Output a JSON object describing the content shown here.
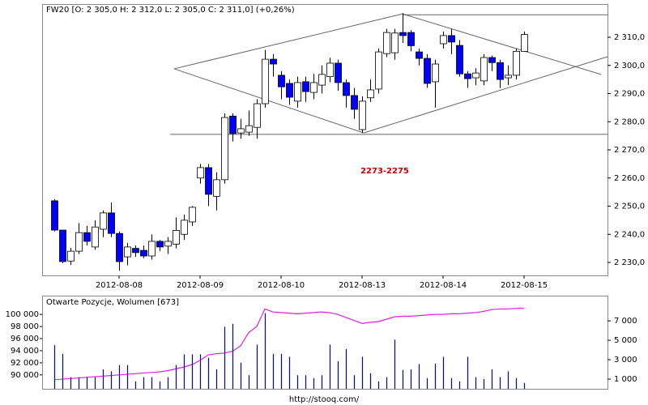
{
  "chart_data": [
    {
      "type": "candlestick",
      "title": "FW20 [O: 2 305,0  H: 2 312,0  L: 2 305,0  C: 2 311,0] (+0,26%)",
      "categories": [
        null,
        null,
        null,
        null,
        null,
        null,
        null,
        null,
        "2012-08-08",
        null,
        null,
        null,
        null,
        null,
        null,
        null,
        null,
        null,
        "2012-08-09",
        null,
        null,
        null,
        null,
        null,
        null,
        null,
        null,
        null,
        "2012-08-10",
        null,
        null,
        null,
        null,
        null,
        null,
        null,
        null,
        null,
        "2012-08-13",
        null,
        null,
        null,
        null,
        null,
        null,
        null,
        null,
        null,
        "2012-08-14",
        null,
        null,
        null,
        null,
        null,
        null,
        null,
        null,
        null,
        "2012-08-15"
      ],
      "open": [
        2251.9,
        2241.5,
        2230.5,
        2234,
        2240.6,
        2235.5,
        2241.8,
        2247.6,
        2240.3,
        2232,
        2235,
        2234.3,
        2232.3,
        2237.5,
        2235.8,
        2236.5,
        2240,
        2244.4,
        2260,
        2263.7,
        2253.5,
        2259.4,
        2282,
        2276,
        2276.3,
        2278,
        2286.4,
        2302.2,
        2296.5,
        2293.6,
        2287.3,
        2294.2,
        2290.4,
        2293,
        2296,
        2300.8,
        2293.9,
        2289.3,
        2277.2,
        2288.5,
        2291.6,
        2304.2,
        2304.5,
        2311.7,
        2311.7,
        2304.8,
        2302.5,
        2294.2,
        2307.7,
        2310.6,
        2307.1,
        2297,
        2295.6,
        2294.5,
        2302.8,
        2301,
        2295.6,
        2296.5,
        2305
      ],
      "high": [
        2252.5,
        2241.5,
        2235.2,
        2244,
        2243,
        2245,
        2248.5,
        2251.3,
        2241,
        2237,
        2236,
        2236,
        2240,
        2238,
        2239,
        2246,
        2247,
        2250,
        2265,
        2265,
        2262,
        2283,
        2283,
        2281,
        2284,
        2288,
        2305.5,
        2304,
        2298,
        2295,
        2296,
        2296,
        2297,
        2300,
        2302.7,
        2302,
        2295,
        2292,
        2289,
        2295,
        2306,
        2313,
        2313,
        2318.6,
        2312.5,
        2306,
        2304,
        2302,
        2312,
        2313,
        2309,
        2298,
        2299,
        2304,
        2303.5,
        2302,
        2300,
        2306,
        2312
      ],
      "low": [
        2241,
        2229.7,
        2229.1,
        2233,
        2236,
        2234.5,
        2239,
        2239,
        2227.1,
        2229,
        2232,
        2231.5,
        2231,
        2234,
        2233,
        2235,
        2238,
        2243,
        2258,
        2250,
        2248.5,
        2258,
        2273,
        2274,
        2275,
        2274,
        2285,
        2296,
        2288,
        2286,
        2285,
        2287,
        2288,
        2290,
        2294,
        2291,
        2285,
        2281,
        2276,
        2287,
        2290,
        2303,
        2302,
        2308,
        2305,
        2300,
        2292,
        2285,
        2306,
        2304,
        2296,
        2292,
        2293,
        2293,
        2298,
        2292,
        2293,
        2295,
        2305
      ],
      "close": [
        2241.5,
        2230.3,
        2234,
        2240.6,
        2237.5,
        2242.6,
        2247.6,
        2240.3,
        2230.3,
        2235.5,
        2233.5,
        2232.3,
        2237.5,
        2235.5,
        2237.5,
        2241.4,
        2245,
        2249.6,
        2263.7,
        2254.2,
        2259.4,
        2281.5,
        2275.8,
        2277.5,
        2278.6,
        2286.4,
        2302.2,
        2300.5,
        2292.4,
        2288.7,
        2293.9,
        2290.7,
        2293.9,
        2296.8,
        2300.8,
        2293.9,
        2289.3,
        2284.4,
        2287.3,
        2291.3,
        2304.8,
        2311.7,
        2311.5,
        2310.6,
        2307,
        2302.5,
        2293.6,
        2300.5,
        2310.6,
        2308.3,
        2297,
        2295.3,
        2297.3,
        2302.8,
        2301,
        2295,
        2296.5,
        2305,
        2311
      ],
      "up_color": "#ffffff",
      "down_color": "#0000ff",
      "edge_color": "#000000",
      "ylim": [
        2225.4,
        2321.8
      ],
      "yticks": [
        {
          "value": 2230,
          "label": "2 230,0"
        },
        {
          "value": 2240,
          "label": "2 240,0"
        },
        {
          "value": 2250,
          "label": "2 250,0"
        },
        {
          "value": 2260,
          "label": "2 260,0"
        },
        {
          "value": 2270,
          "label": "2 270,0"
        },
        {
          "value": 2280,
          "label": "2 280,0"
        },
        {
          "value": 2290,
          "label": "2 290,0"
        },
        {
          "value": 2300,
          "label": "2 300,0"
        },
        {
          "value": 2310,
          "label": "2 310,0"
        }
      ],
      "lines": [
        {
          "x": [
            14.8,
            43
          ],
          "y": [
            2298.8,
            2318.3
          ]
        },
        {
          "x": [
            14.8,
            38.2
          ],
          "y": [
            2298.8,
            2276
          ]
        },
        {
          "x": [
            43,
            67.5
          ],
          "y": [
            2318.3,
            2296.8
          ]
        },
        {
          "x": [
            38.2,
            68.3
          ],
          "y": [
            2276,
            2303.1
          ]
        },
        {
          "x": [
            43,
            68.3
          ],
          "y": [
            2318,
            2318
          ]
        },
        {
          "x": [
            14.3,
            68.3
          ],
          "y": [
            2275.5,
            2275.5
          ]
        }
      ],
      "line_color": "#666666",
      "annotation": {
        "text": "2273-2275",
        "x": 40.8,
        "y": 2262.5,
        "color": "#cc0000"
      }
    },
    {
      "type": "combo",
      "title": "Otwarte Pozycje, Wolumen [673]",
      "series": [
        {
          "color": "#e020e0",
          "axis": "y",
          "values": [
            89200,
            89300,
            89400,
            89500,
            89600,
            89700,
            89800,
            89900,
            90000,
            90100,
            90200,
            90300,
            90400,
            90500,
            90700,
            91000,
            91300,
            91700,
            92400,
            93300,
            93500,
            93600,
            93900,
            94800,
            97000,
            98000,
            100900,
            100400,
            100300,
            100200,
            100100,
            100200,
            100300,
            100400,
            100300,
            100000,
            99500,
            99000,
            98500,
            98700,
            98800,
            99200,
            99600,
            99700,
            99700,
            99800,
            99900,
            100000,
            100000,
            100100,
            100100,
            100200,
            100300,
            100500,
            100800,
            100900,
            100900,
            101000,
            101000
          ]
        },
        {
          "color": "#0000cc",
          "axis": "y2",
          "values": [
            4500,
            3600,
            1200,
            1200,
            1200,
            1200,
            2000,
            1800,
            2450,
            2450,
            760,
            1200,
            1200,
            760,
            1200,
            2450,
            3550,
            3550,
            3550,
            3200,
            2000,
            6400,
            6700,
            2700,
            1400,
            4550,
            7800,
            3600,
            3600,
            3300,
            1400,
            1400,
            1100,
            1400,
            4550,
            2850,
            4100,
            1400,
            3300,
            1600,
            760,
            1200,
            5070,
            1950,
            2000,
            2550,
            1100,
            2600,
            3300,
            1100,
            760,
            3300,
            1200,
            1000,
            2000,
            1200,
            1800,
            1100,
            600
          ]
        }
      ],
      "ylim": [
        87700,
        103100
      ],
      "yticks": [
        {
          "value": 90000,
          "label": "90 000"
        },
        {
          "value": 92000,
          "label": "92 000"
        },
        {
          "value": 94000,
          "label": "94 000"
        },
        {
          "value": 96000,
          "label": "96 000"
        },
        {
          "value": 98000,
          "label": "98 000"
        },
        {
          "value": 100000,
          "label": "100 000"
        }
      ],
      "y2lim": [
        0,
        9600
      ],
      "y2ticks": [
        {
          "value": 1000,
          "label": "1 000"
        },
        {
          "value": 3000,
          "label": "3 000"
        },
        {
          "value": 5000,
          "label": "5 000"
        },
        {
          "value": 7000,
          "label": "7 000"
        }
      ]
    }
  ],
  "footer": "http://stooq.com/"
}
